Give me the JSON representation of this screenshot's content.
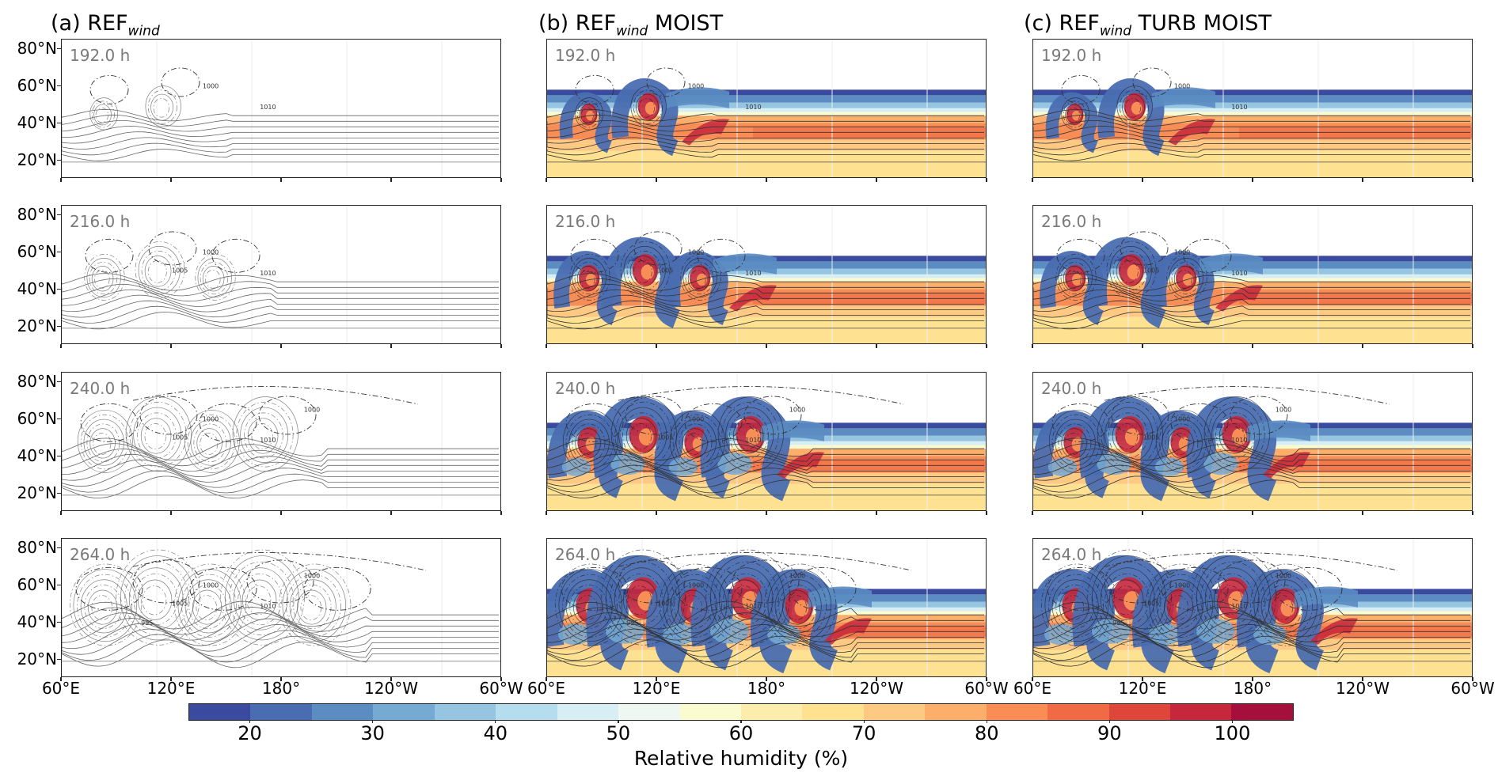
{
  "columns": [
    {
      "prefix": "(a) REF",
      "sub": "wind",
      "suffix": ""
    },
    {
      "prefix": "(b) REF",
      "sub": "wind",
      "suffix": " MOIST"
    },
    {
      "prefix": "(c) REF",
      "sub": "wind",
      "suffix": " TURB MOIST"
    }
  ],
  "times": [
    "192.0 h",
    "216.0 h",
    "240.0 h",
    "264.0 h"
  ],
  "y_tick_labels": [
    "80°N",
    "60°N",
    "40°N",
    "20°N"
  ],
  "x_tick_labels": [
    "60°E",
    "120°E",
    "180°",
    "120°W",
    "60°W"
  ],
  "contour_labels": [
    "1000",
    "1005",
    "1010",
    "995",
    "990"
  ],
  "colorbar": {
    "label": "Relative humidity (%)",
    "tick_labels": [
      "20",
      "30",
      "40",
      "50",
      "60",
      "70",
      "80",
      "90",
      "100"
    ],
    "colors": [
      "#3a4b9f",
      "#4a6db1",
      "#5b8cc2",
      "#75aad3",
      "#95c5e0",
      "#b6dded",
      "#d6eef4",
      "#eef7f1",
      "#fbfbd0",
      "#fdedac",
      "#fee291",
      "#fdc983",
      "#fcae6b",
      "#f88d56",
      "#ef6a45",
      "#de463a",
      "#c7273b",
      "#a50f3b"
    ]
  }
}
